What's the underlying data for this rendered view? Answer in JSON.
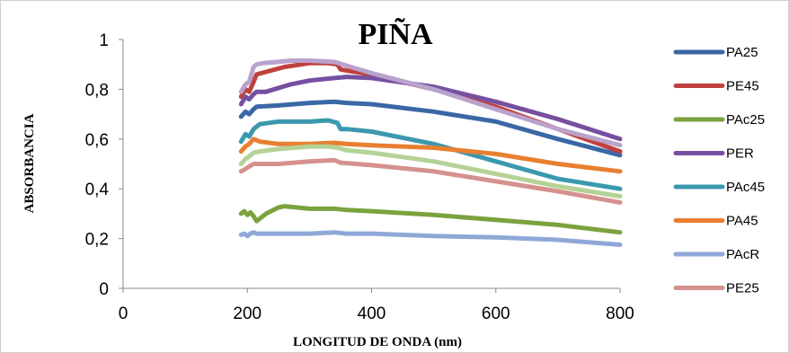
{
  "chart_data": {
    "type": "line",
    "title": "PIÑA",
    "xlabel": "LONGITUD DE ONDA (nm)",
    "ylabel": "ABSORBANCIA",
    "xlim": [
      0,
      800
    ],
    "ylim": [
      0,
      1
    ],
    "x_ticks": [
      0,
      200,
      400,
      600,
      800
    ],
    "y_ticks": [
      0,
      0.2,
      0.4,
      0.6,
      0.8,
      1
    ],
    "y_tick_labels": [
      "0",
      "0,2",
      "0,4",
      "0,6",
      "0,8",
      "1"
    ],
    "x_tick_labels": [
      "0",
      "200",
      "400",
      "600",
      "800"
    ],
    "grid": false,
    "legend_position": "right",
    "series": [
      {
        "name": "PA25",
        "color": "#3a67a5",
        "points": [
          [
            190,
            0.69
          ],
          [
            197,
            0.71
          ],
          [
            203,
            0.7
          ],
          [
            210,
            0.72
          ],
          [
            215,
            0.73
          ],
          [
            250,
            0.735
          ],
          [
            300,
            0.745
          ],
          [
            340,
            0.75
          ],
          [
            360,
            0.745
          ],
          [
            400,
            0.74
          ],
          [
            500,
            0.71
          ],
          [
            600,
            0.67
          ],
          [
            700,
            0.6
          ],
          [
            800,
            0.535
          ]
        ]
      },
      {
        "name": "PE45",
        "color": "#c0413e",
        "points": [
          [
            190,
            0.77
          ],
          [
            197,
            0.8
          ],
          [
            203,
            0.79
          ],
          [
            210,
            0.83
          ],
          [
            215,
            0.86
          ],
          [
            230,
            0.87
          ],
          [
            260,
            0.89
          ],
          [
            300,
            0.905
          ],
          [
            330,
            0.905
          ],
          [
            345,
            0.9
          ],
          [
            350,
            0.88
          ],
          [
            360,
            0.875
          ],
          [
            400,
            0.86
          ],
          [
            500,
            0.8
          ],
          [
            600,
            0.73
          ],
          [
            700,
            0.64
          ],
          [
            800,
            0.55
          ]
        ]
      },
      {
        "name": "PAc25",
        "color": "#7ba23f",
        "points": [
          [
            190,
            0.3
          ],
          [
            195,
            0.31
          ],
          [
            200,
            0.295
          ],
          [
            205,
            0.305
          ],
          [
            210,
            0.29
          ],
          [
            215,
            0.27
          ],
          [
            220,
            0.28
          ],
          [
            230,
            0.3
          ],
          [
            250,
            0.325
          ],
          [
            260,
            0.33
          ],
          [
            300,
            0.32
          ],
          [
            340,
            0.32
          ],
          [
            360,
            0.315
          ],
          [
            400,
            0.31
          ],
          [
            500,
            0.295
          ],
          [
            600,
            0.275
          ],
          [
            700,
            0.255
          ],
          [
            800,
            0.225
          ]
        ]
      },
      {
        "name": "PER",
        "color": "#7650a0",
        "points": [
          [
            190,
            0.74
          ],
          [
            197,
            0.77
          ],
          [
            203,
            0.76
          ],
          [
            210,
            0.78
          ],
          [
            215,
            0.79
          ],
          [
            230,
            0.79
          ],
          [
            270,
            0.82
          ],
          [
            300,
            0.835
          ],
          [
            340,
            0.845
          ],
          [
            360,
            0.85
          ],
          [
            400,
            0.845
          ],
          [
            500,
            0.81
          ],
          [
            600,
            0.75
          ],
          [
            700,
            0.68
          ],
          [
            800,
            0.6
          ]
        ]
      },
      {
        "name": "PAc45",
        "color": "#3c98ae",
        "points": [
          [
            190,
            0.59
          ],
          [
            197,
            0.62
          ],
          [
            203,
            0.61
          ],
          [
            210,
            0.64
          ],
          [
            220,
            0.66
          ],
          [
            250,
            0.67
          ],
          [
            300,
            0.67
          ],
          [
            330,
            0.675
          ],
          [
            345,
            0.665
          ],
          [
            350,
            0.64
          ],
          [
            360,
            0.64
          ],
          [
            400,
            0.63
          ],
          [
            500,
            0.58
          ],
          [
            600,
            0.51
          ],
          [
            700,
            0.44
          ],
          [
            800,
            0.4
          ]
        ]
      },
      {
        "name": "PA45",
        "color": "#e87f30",
        "points": [
          [
            190,
            0.55
          ],
          [
            197,
            0.57
          ],
          [
            203,
            0.58
          ],
          [
            210,
            0.6
          ],
          [
            220,
            0.59
          ],
          [
            250,
            0.58
          ],
          [
            300,
            0.58
          ],
          [
            340,
            0.585
          ],
          [
            360,
            0.58
          ],
          [
            400,
            0.575
          ],
          [
            500,
            0.565
          ],
          [
            600,
            0.54
          ],
          [
            700,
            0.5
          ],
          [
            800,
            0.47
          ]
        ]
      },
      {
        "name": "PAcR",
        "color": "#8fa8d8",
        "points": [
          [
            190,
            0.215
          ],
          [
            195,
            0.22
          ],
          [
            200,
            0.21
          ],
          [
            205,
            0.22
          ],
          [
            210,
            0.225
          ],
          [
            215,
            0.22
          ],
          [
            250,
            0.22
          ],
          [
            300,
            0.22
          ],
          [
            340,
            0.225
          ],
          [
            360,
            0.22
          ],
          [
            400,
            0.22
          ],
          [
            500,
            0.21
          ],
          [
            600,
            0.205
          ],
          [
            700,
            0.195
          ],
          [
            800,
            0.175
          ]
        ]
      },
      {
        "name": "PE25",
        "color": "#d5918e",
        "points": [
          [
            190,
            0.47
          ],
          [
            197,
            0.48
          ],
          [
            203,
            0.49
          ],
          [
            210,
            0.5
          ],
          [
            220,
            0.5
          ],
          [
            250,
            0.5
          ],
          [
            300,
            0.51
          ],
          [
            340,
            0.515
          ],
          [
            350,
            0.505
          ],
          [
            400,
            0.495
          ],
          [
            500,
            0.47
          ],
          [
            600,
            0.43
          ],
          [
            700,
            0.39
          ],
          [
            800,
            0.345
          ]
        ]
      },
      {
        "name": "",
        "color": "#b4d296",
        "points": [
          [
            190,
            0.5
          ],
          [
            197,
            0.52
          ],
          [
            203,
            0.53
          ],
          [
            210,
            0.545
          ],
          [
            220,
            0.55
          ],
          [
            250,
            0.56
          ],
          [
            300,
            0.57
          ],
          [
            330,
            0.57
          ],
          [
            345,
            0.565
          ],
          [
            360,
            0.555
          ],
          [
            400,
            0.545
          ],
          [
            500,
            0.51
          ],
          [
            600,
            0.46
          ],
          [
            700,
            0.41
          ],
          [
            800,
            0.37
          ]
        ]
      },
      {
        "name": "",
        "color": "#b9a3cc",
        "points": [
          [
            190,
            0.79
          ],
          [
            197,
            0.82
          ],
          [
            203,
            0.83
          ],
          [
            210,
            0.89
          ],
          [
            215,
            0.9
          ],
          [
            225,
            0.905
          ],
          [
            250,
            0.91
          ],
          [
            270,
            0.915
          ],
          [
            300,
            0.915
          ],
          [
            340,
            0.91
          ],
          [
            360,
            0.895
          ],
          [
            400,
            0.865
          ],
          [
            500,
            0.8
          ],
          [
            600,
            0.72
          ],
          [
            700,
            0.64
          ],
          [
            800,
            0.575
          ]
        ]
      }
    ]
  }
}
